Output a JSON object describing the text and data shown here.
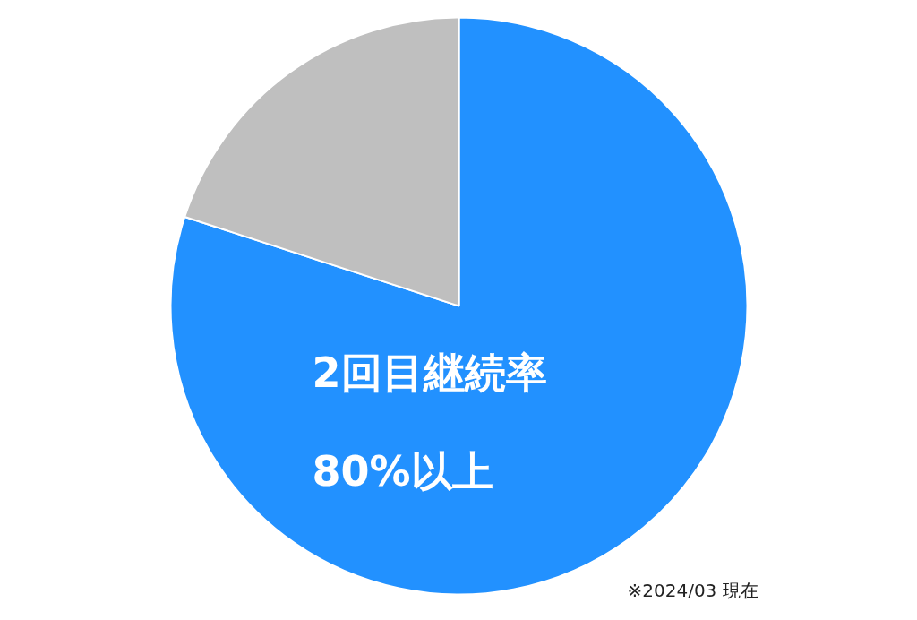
{
  "chart_data": {
    "type": "pie",
    "categories": [
      null,
      null
    ],
    "values": [
      80,
      20
    ],
    "colors": [
      "#2291ff",
      "#bfbfbf"
    ],
    "annotations": [
      "2回目継続率",
      "80%以上",
      "※2024/03 現在"
    ]
  }
}
